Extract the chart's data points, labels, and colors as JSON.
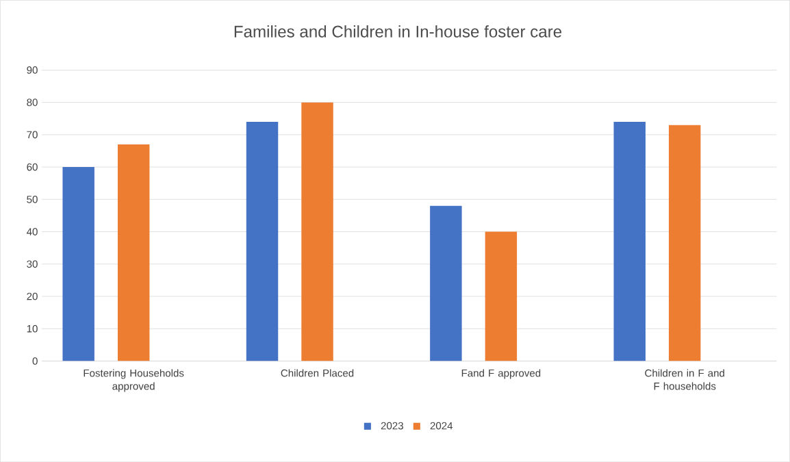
{
  "chart_data": {
    "type": "bar",
    "title": "Families and Children in In-house foster care",
    "categories": [
      "Fostering Households approved",
      "Children Placed",
      "Fand F approved",
      "Children in F and F households"
    ],
    "series": [
      {
        "name": "2023",
        "color": "#4472c4",
        "values": [
          60,
          74,
          48,
          74
        ]
      },
      {
        "name": "2024",
        "color": "#ed7d31",
        "values": [
          67,
          80,
          40,
          73
        ]
      }
    ],
    "ylim": [
      0,
      90
    ],
    "yticks": [
      0,
      10,
      20,
      30,
      40,
      50,
      60,
      70,
      80,
      90
    ],
    "grid": "y",
    "legend": "bottom"
  }
}
